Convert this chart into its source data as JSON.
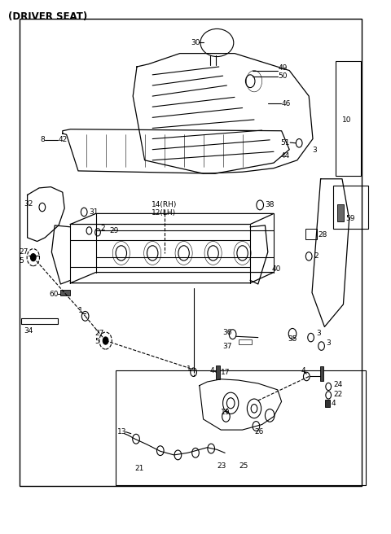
{
  "title": "(DRIVER SEAT)",
  "bg_color": "#ffffff",
  "line_color": "#000000",
  "fig_width": 4.8,
  "fig_height": 6.56,
  "dpi": 100
}
